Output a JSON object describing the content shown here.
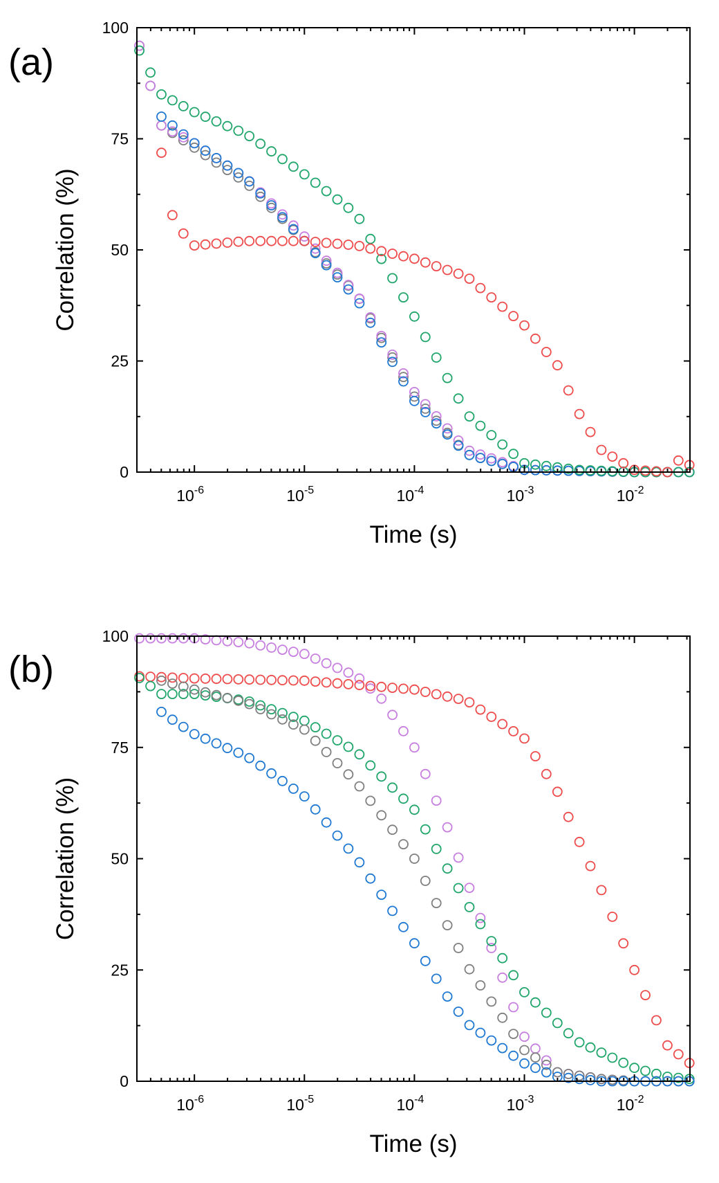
{
  "chart_data": [
    {
      "type": "scatter",
      "panel_label": "(a)",
      "title": "",
      "xlabel": "Time (s)",
      "ylabel": "Correlation (%)",
      "xscale": "log",
      "xlim": [
        3e-07,
        0.032
      ],
      "ylim": [
        0,
        100
      ],
      "yticks": [
        "0",
        "25",
        "50",
        "75",
        "100"
      ],
      "xticks": [
        {
          "value": 1e-06,
          "base": "10",
          "exp": "-6"
        },
        {
          "value": 1e-05,
          "base": "10",
          "exp": "-5"
        },
        {
          "value": 0.0001,
          "base": "10",
          "exp": "-4"
        },
        {
          "value": 0.001,
          "base": "10",
          "exp": "-3"
        },
        {
          "value": 0.01,
          "base": "10",
          "exp": "-2"
        }
      ],
      "grid": false,
      "legend": "none",
      "series": [
        {
          "color": "#7f7f7f",
          "curve": [
            [
              3e-07,
              98
            ],
            [
              5e-07,
              78
            ],
            [
              1e-06,
              73
            ],
            [
              3e-06,
              65
            ],
            [
              1e-05,
              52
            ],
            [
              3e-05,
              40
            ],
            [
              0.0001,
              17
            ],
            [
              0.0003,
              4
            ],
            [
              0.001,
              0.5
            ],
            [
              0.01,
              0
            ],
            [
              0.032,
              0
            ]
          ]
        },
        {
          "color": "#c77ee0",
          "curve": [
            [
              3e-07,
              98
            ],
            [
              5e-07,
              78
            ],
            [
              1e-06,
              74
            ],
            [
              3e-06,
              66
            ],
            [
              1e-05,
              53
            ],
            [
              3e-05,
              40
            ],
            [
              0.0001,
              18
            ],
            [
              0.0003,
              5
            ],
            [
              0.001,
              0.5
            ],
            [
              0.01,
              0
            ],
            [
              0.032,
              0
            ]
          ]
        },
        {
          "color": "#1f78d1",
          "curve": [
            [
              5e-07,
              80
            ],
            [
              1e-06,
              74
            ],
            [
              3e-06,
              66
            ],
            [
              1e-05,
              52
            ],
            [
              3e-05,
              39
            ],
            [
              0.0001,
              16
            ],
            [
              0.0003,
              4
            ],
            [
              0.001,
              0.5
            ],
            [
              0.01,
              0
            ],
            [
              0.032,
              0
            ]
          ]
        },
        {
          "color": "#1fa56a",
          "curve": [
            [
              3e-07,
              96
            ],
            [
              5e-07,
              85
            ],
            [
              1e-06,
              81
            ],
            [
              3e-06,
              76
            ],
            [
              1e-05,
              67
            ],
            [
              3e-05,
              58
            ],
            [
              5e-05,
              48
            ],
            [
              0.0001,
              35
            ],
            [
              0.0003,
              13
            ],
            [
              0.001,
              2
            ],
            [
              0.003,
              0.5
            ],
            [
              0.01,
              0
            ],
            [
              0.032,
              0
            ]
          ]
        },
        {
          "color": "#ee4a4a",
          "curve": [
            [
              5e-07,
              72
            ],
            [
              6.5e-07,
              56
            ],
            [
              1e-06,
              51
            ],
            [
              3e-06,
              52
            ],
            [
              1e-05,
              52
            ],
            [
              3e-05,
              51
            ],
            [
              0.0001,
              48
            ],
            [
              0.0003,
              44
            ],
            [
              0.001,
              33
            ],
            [
              0.002,
              24
            ],
            [
              0.003,
              14
            ],
            [
              0.005,
              5
            ],
            [
              0.01,
              0.5
            ],
            [
              0.02,
              0
            ],
            [
              0.026,
              3
            ],
            [
              0.032,
              1.5
            ]
          ]
        }
      ]
    },
    {
      "type": "scatter",
      "panel_label": "(b)",
      "title": "",
      "xlabel": "Time (s)",
      "ylabel": "Correlation (%)",
      "xscale": "log",
      "xlim": [
        3e-07,
        0.032
      ],
      "ylim": [
        0,
        100
      ],
      "yticks": [
        "0",
        "25",
        "50",
        "75",
        "100"
      ],
      "xticks": [
        {
          "value": 1e-06,
          "base": "10",
          "exp": "-6"
        },
        {
          "value": 1e-05,
          "base": "10",
          "exp": "-5"
        },
        {
          "value": 0.0001,
          "base": "10",
          "exp": "-4"
        },
        {
          "value": 0.001,
          "base": "10",
          "exp": "-3"
        },
        {
          "value": 0.01,
          "base": "10",
          "exp": "-2"
        }
      ],
      "grid": false,
      "legend": "none",
      "series": [
        {
          "color": "#c77ee0",
          "curve": [
            [
              3e-07,
              99.5
            ],
            [
              1e-06,
              99.5
            ],
            [
              3e-06,
              98.5
            ],
            [
              1e-05,
              96
            ],
            [
              3e-05,
              91
            ],
            [
              5e-05,
              86
            ],
            [
              0.0001,
              75
            ],
            [
              0.0002,
              57
            ],
            [
              0.0003,
              45
            ],
            [
              0.0005,
              30
            ],
            [
              0.001,
              10
            ],
            [
              0.002,
              2
            ],
            [
              0.005,
              0.5
            ],
            [
              0.01,
              0
            ],
            [
              0.032,
              0
            ]
          ]
        },
        {
          "color": "#ee4a4a",
          "curve": [
            [
              3e-07,
              91
            ],
            [
              1e-06,
              90.5
            ],
            [
              1e-05,
              90
            ],
            [
              0.0001,
              88
            ],
            [
              0.0003,
              85.5
            ],
            [
              0.001,
              77
            ],
            [
              0.002,
              65
            ],
            [
              0.003,
              55
            ],
            [
              0.005,
              43
            ],
            [
              0.01,
              25
            ],
            [
              0.02,
              8
            ],
            [
              0.032,
              4
            ]
          ]
        },
        {
          "color": "#1fa56a",
          "curve": [
            [
              3e-07,
              91
            ],
            [
              5e-07,
              87
            ],
            [
              1e-06,
              87
            ],
            [
              3e-06,
              85.5
            ],
            [
              1e-05,
              81
            ],
            [
              3e-05,
              74
            ],
            [
              0.0001,
              61
            ],
            [
              0.0003,
              40
            ],
            [
              0.001,
              20
            ],
            [
              0.003,
              9
            ],
            [
              0.01,
              3
            ],
            [
              0.02,
              1
            ],
            [
              0.032,
              0.5
            ]
          ]
        },
        {
          "color": "#7f7f7f",
          "curve": [
            [
              5e-07,
              90
            ],
            [
              1e-06,
              88
            ],
            [
              3e-06,
              85
            ],
            [
              1e-05,
              79
            ],
            [
              3e-05,
              67
            ],
            [
              0.0001,
              50
            ],
            [
              0.0002,
              35
            ],
            [
              0.0003,
              26
            ],
            [
              0.001,
              7
            ],
            [
              0.002,
              2
            ],
            [
              0.005,
              0.5
            ],
            [
              0.01,
              0
            ],
            [
              0.032,
              0
            ]
          ]
        },
        {
          "color": "#1f78d1",
          "curve": [
            [
              5e-07,
              83
            ],
            [
              6.5e-07,
              81
            ],
            [
              1e-06,
              78
            ],
            [
              3e-06,
              73
            ],
            [
              1e-05,
              64
            ],
            [
              3e-05,
              50
            ],
            [
              0.0001,
              31
            ],
            [
              0.0002,
              19
            ],
            [
              0.0003,
              13
            ],
            [
              0.001,
              4
            ],
            [
              0.002,
              1
            ],
            [
              0.005,
              0
            ],
            [
              0.01,
              0
            ],
            [
              0.032,
              0
            ]
          ]
        }
      ]
    }
  ]
}
